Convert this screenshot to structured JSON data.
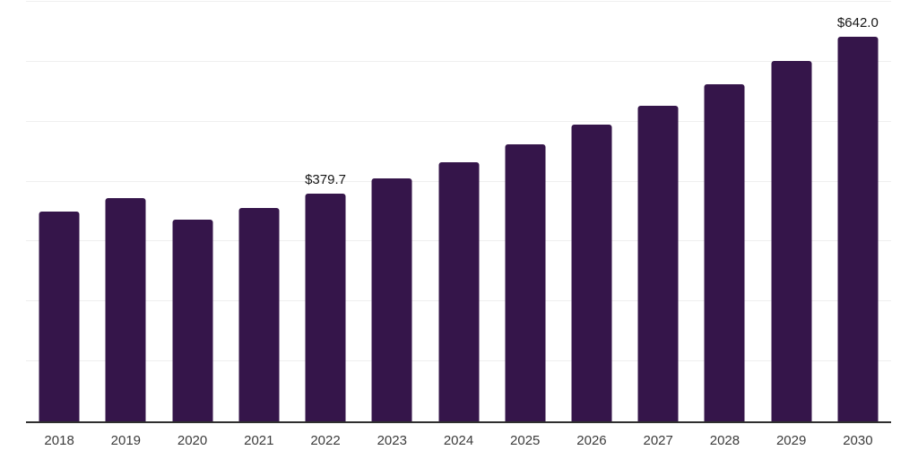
{
  "chart_data": {
    "type": "bar",
    "title": "",
    "xlabel": "",
    "ylabel": "",
    "categories": [
      "2018",
      "2019",
      "2020",
      "2021",
      "2022",
      "2023",
      "2024",
      "2025",
      "2026",
      "2027",
      "2028",
      "2029",
      "2030"
    ],
    "values": [
      350.0,
      372.4,
      337.3,
      356.7,
      379.7,
      405.3,
      432.3,
      462.6,
      495.8,
      526.1,
      562.4,
      601.3,
      642.0
    ],
    "value_labels": [
      null,
      null,
      null,
      null,
      "$379.7",
      null,
      null,
      null,
      null,
      null,
      null,
      null,
      "$642.0"
    ],
    "ylim": [
      0,
      700
    ],
    "grid_step": 100,
    "grid": true,
    "legend": false,
    "bar_color": "#35154A"
  },
  "colors": {
    "background": "#ffffff",
    "bar": "#35154A",
    "gridline": "#efefef",
    "axis_line": "#2f2f2f",
    "tick_label": "#3c3c3c",
    "value_label": "#161616"
  }
}
